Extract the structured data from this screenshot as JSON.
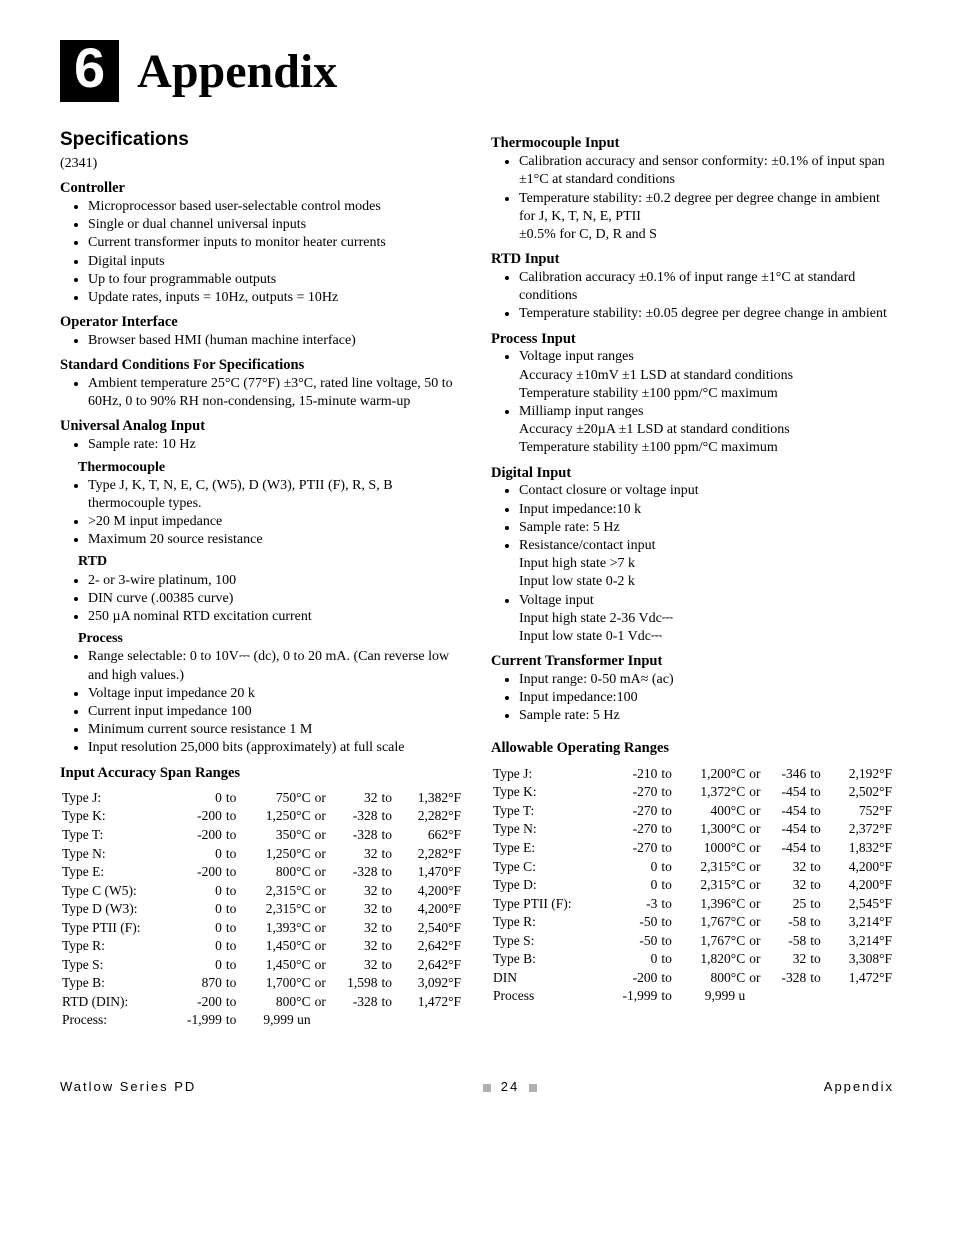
{
  "chapter": {
    "num": "6",
    "title": "Appendix"
  },
  "spec_heading": "Specifications",
  "spec_code": "(2341)",
  "controller": {
    "head": "Controller",
    "items": [
      "Microprocessor based user-selectable control modes",
      "Single or dual channel universal inputs",
      "Current transformer inputs to monitor heater currents",
      "Digital inputs",
      "Up to four programmable outputs",
      "Update rates, inputs = 10Hz, outputs = 10Hz"
    ]
  },
  "opiface": {
    "head": "Operator Interface",
    "items": [
      "Browser based HMI (human machine interface)"
    ]
  },
  "stdcond": {
    "head": "Standard Conditions For Specifications",
    "items": [
      "Ambient temperature 25°C (77°F) ±3°C, rated line voltage, 50 to 60Hz, 0 to 90% RH non-condensing, 15-minute warm-up"
    ]
  },
  "uai": {
    "head": "Universal Analog Input",
    "pre": [
      "Sample rate: 10 Hz"
    ],
    "tc_head": "Thermocouple",
    "tc_items": [
      "Type J, K, T, N, E, C, (W5), D (W3), PTII (F), R, S, B thermocouple types.",
      ">20 M   input impedance",
      "Maximum 20    source resistance"
    ],
    "rtd_head": "RTD",
    "rtd_items": [
      "2- or 3-wire platinum, 100",
      "DIN curve (.00385 curve)",
      "250 µA nominal RTD excitation current"
    ],
    "proc_head": "Process",
    "proc_items": [
      "Range selectable: 0 to 10V⎓ (dc), 0 to 20 mA. (Can reverse low and high values.)",
      "Voltage input impedance 20 k",
      "Current input impedance 100",
      "Minimum current source resistance 1 M",
      "Input resolution 25,000 bits (approximately) at full scale"
    ]
  },
  "iaspan": {
    "head": "Input Accuracy Span Ranges",
    "rows": [
      [
        "Type J:",
        "0",
        "to",
        "750°C",
        "or",
        "32",
        "to",
        "1,382°F"
      ],
      [
        "Type K:",
        "-200",
        "to",
        "1,250°C",
        "or",
        "-328",
        "to",
        "2,282°F"
      ],
      [
        "Type T:",
        "-200",
        "to",
        "350°C",
        "or",
        "-328",
        "to",
        "662°F"
      ],
      [
        "Type N:",
        "0",
        "to",
        "1,250°C",
        "or",
        "32",
        "to",
        "2,282°F"
      ],
      [
        "Type E:",
        "-200",
        "to",
        "800°C",
        "or",
        "-328",
        "to",
        "1,470°F"
      ],
      [
        "Type C (W5):",
        "0",
        "to",
        "2,315°C",
        "or",
        "32",
        "to",
        "4,200°F"
      ],
      [
        "Type D (W3):",
        "0",
        "to",
        "2,315°C",
        "or",
        "32",
        "to",
        "4,200°F"
      ],
      [
        "Type PTII (F):",
        "0",
        "to",
        "1,393°C",
        "or",
        "32",
        "to",
        "2,540°F"
      ],
      [
        "Type R:",
        "0",
        "to",
        "1,450°C",
        "or",
        "32",
        "to",
        "2,642°F"
      ],
      [
        "Type S:",
        "0",
        "to",
        "1,450°C",
        "or",
        "32",
        "to",
        "2,642°F"
      ],
      [
        "Type B:",
        "870",
        "to",
        "1,700°C",
        "or",
        "1,598",
        "to",
        "3,092°F"
      ],
      [
        "RTD (DIN):",
        "-200",
        "to",
        "800°C",
        "or",
        "-328",
        "to",
        "1,472°F"
      ],
      [
        "Process:",
        "-1,999",
        "to",
        "9,999 un",
        "",
        "",
        "",
        ""
      ]
    ]
  },
  "tc_in": {
    "head": "Thermocouple Input",
    "items": [
      "Calibration accuracy and sensor conformity: ±0.1% of input span ±1°C at standard conditions",
      "Temperature stability: ±0.2 degree per degree change in ambient for J, K, T, N, E, PTII\n±0.5% for C, D, R and S"
    ]
  },
  "rtd_in": {
    "head": "RTD Input",
    "items": [
      "Calibration accuracy ±0.1% of input range ±1°C at standard conditions",
      "Temperature stability: ±0.05 degree per degree change in ambient"
    ]
  },
  "proc_in": {
    "head": "Process Input",
    "items": [
      "Voltage input ranges\nAccuracy ±10mV ±1 LSD at standard conditions\nTemperature stability ±100 ppm/°C maximum",
      "Milliamp input ranges\nAccuracy ±20µA ±1 LSD at standard conditions\nTemperature stability ±100 ppm/°C maximum"
    ]
  },
  "dig_in": {
    "head": "Digital Input",
    "items": [
      "Contact closure or voltage input",
      "Input impedance:10 k",
      "Sample rate: 5 Hz",
      "Resistance/contact input\nInput high state >7 k\nInput low state 0-2 k",
      "Voltage input\nInput high state 2-36 Vdc⎓\nInput low state 0-1 Vdc⎓"
    ]
  },
  "ct_in": {
    "head": "Current Transformer Input",
    "items": [
      "Input range: 0-50 mA≈ (ac)",
      "Input impedance:100",
      "Sample rate: 5 Hz"
    ]
  },
  "allow": {
    "head": "Allowable Operating Ranges",
    "rows": [
      [
        "Type J:",
        "-210",
        "to",
        "1,200°C",
        "or",
        "-346",
        "to",
        "2,192°F"
      ],
      [
        "Type K:",
        "-270",
        "to",
        "1,372°C",
        "or",
        "-454",
        "to",
        "2,502°F"
      ],
      [
        "Type T:",
        "-270",
        "to",
        "400°C",
        "or",
        "-454",
        "to",
        "752°F"
      ],
      [
        "Type N:",
        "-270",
        "to",
        "1,300°C",
        "or",
        "-454",
        "to",
        "2,372°F"
      ],
      [
        "Type E:",
        "-270",
        "to",
        "1000°C",
        "or",
        "-454",
        "to",
        "1,832°F"
      ],
      [
        "Type C:",
        "0",
        "to",
        "2,315°C",
        "or",
        "32",
        "to",
        "4,200°F"
      ],
      [
        "Type D:",
        "0",
        "to",
        "2,315°C",
        "or",
        "32",
        "to",
        "4,200°F"
      ],
      [
        "Type PTII (F):",
        "-3",
        "to",
        "1,396°C",
        "or",
        "25",
        "to",
        "2,545°F"
      ],
      [
        "Type R:",
        "-50",
        "to",
        "1,767°C",
        "or",
        "-58",
        "to",
        "3,214°F"
      ],
      [
        "Type S:",
        "-50",
        "to",
        "1,767°C",
        "or",
        "-58",
        "to",
        "3,214°F"
      ],
      [
        "Type B:",
        "0",
        "to",
        "1,820°C",
        "or",
        "32",
        "to",
        "3,308°F"
      ],
      [
        "DIN",
        "-200",
        "to",
        "800°C",
        "or",
        "-328",
        "to",
        "1,472°F"
      ],
      [
        "Process",
        "-1,999",
        "to",
        "9,999 u",
        "",
        "",
        "",
        ""
      ]
    ]
  },
  "footer": {
    "left": "Watlow Series PD",
    "page": "24",
    "right": "Appendix"
  }
}
